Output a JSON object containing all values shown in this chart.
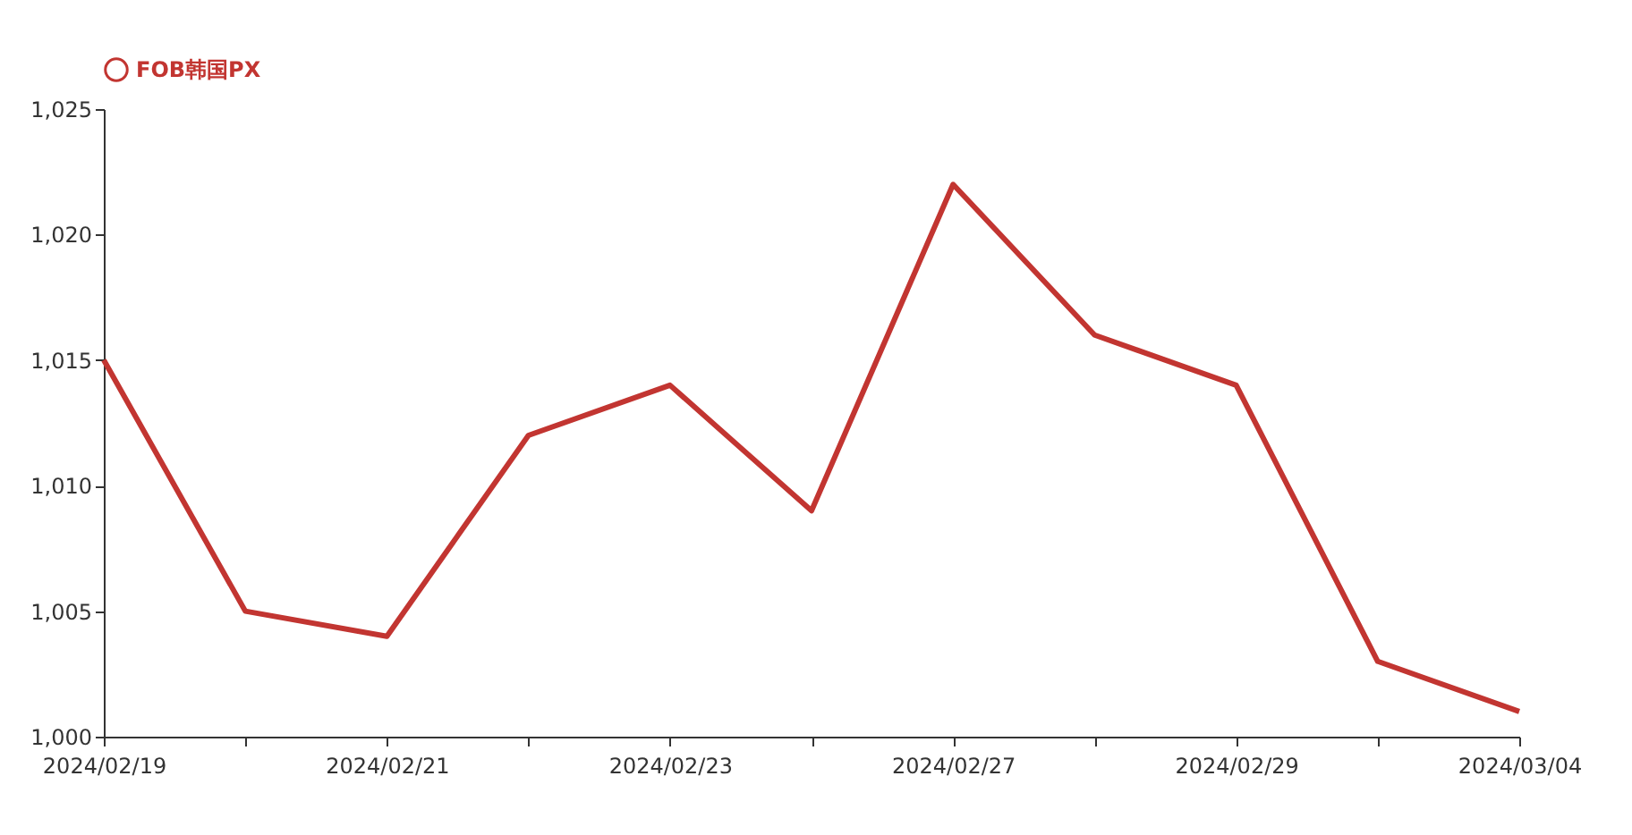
{
  "chart_data": {
    "type": "line",
    "categories": [
      "2024/02/19",
      null,
      "2024/02/21",
      null,
      "2024/02/23",
      null,
      "2024/02/27",
      null,
      "2024/02/29",
      null,
      "2024/03/04"
    ],
    "series": [
      {
        "name": "FOB韩国PX",
        "color": "#c23531",
        "values": [
          1015,
          1005,
          1004,
          1012,
          1014,
          1009,
          1022,
          1016,
          1014,
          1003,
          1001
        ]
      }
    ],
    "ylim": [
      1000,
      1025
    ],
    "yticks": [
      {
        "value": 1000,
        "label": "1,000"
      },
      {
        "value": 1005,
        "label": "1,005"
      },
      {
        "value": 1010,
        "label": "1,010"
      },
      {
        "value": 1015,
        "label": "1,015"
      },
      {
        "value": 1020,
        "label": "1,020"
      },
      {
        "value": 1025,
        "label": "1,025"
      }
    ],
    "legend": "top",
    "marker": "none",
    "line_style": "solid"
  }
}
